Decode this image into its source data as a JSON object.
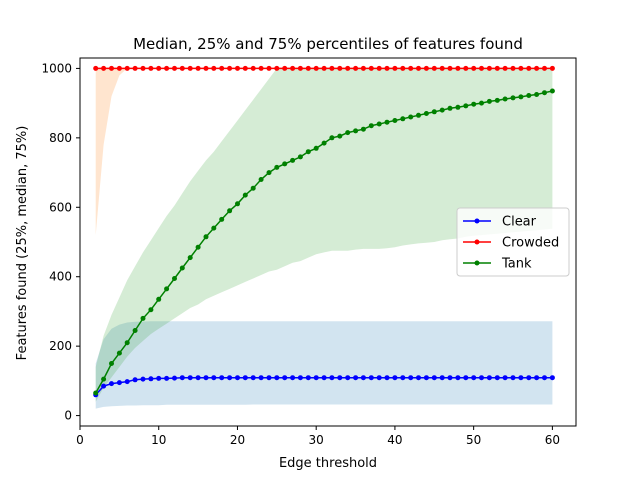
{
  "chart_data": {
    "type": "line",
    "title": "Median, 25% and 75% percentiles of features found",
    "xlabel": "Edge threshold",
    "ylabel": "Features found (25%, median, 75%)",
    "xlim": [
      0,
      63
    ],
    "ylim": [
      -30,
      1030
    ],
    "xticks": [
      0,
      10,
      20,
      30,
      40,
      50,
      60
    ],
    "yticks": [
      0,
      200,
      400,
      600,
      800,
      1000
    ],
    "legend_position": "center-right",
    "grid": false,
    "x": [
      2,
      3,
      4,
      5,
      6,
      7,
      8,
      9,
      10,
      11,
      12,
      13,
      14,
      15,
      16,
      17,
      18,
      19,
      20,
      21,
      22,
      23,
      24,
      25,
      26,
      27,
      28,
      29,
      30,
      31,
      32,
      33,
      34,
      35,
      36,
      37,
      38,
      39,
      40,
      41,
      42,
      43,
      44,
      45,
      46,
      47,
      48,
      49,
      50,
      51,
      52,
      53,
      54,
      55,
      56,
      57,
      58,
      59,
      60
    ],
    "series": [
      {
        "name": "Clear",
        "color": "#0000ff",
        "band_color": "#1f77b4",
        "median": [
          60,
          85,
          92,
          95,
          98,
          103,
          105,
          106,
          107,
          107,
          108,
          109,
          109,
          109,
          109,
          109,
          109,
          109,
          109,
          109,
          109,
          109,
          109,
          109,
          109,
          109,
          109,
          109,
          109,
          109,
          109,
          109,
          109,
          109,
          109,
          109,
          109,
          109,
          109,
          109,
          109,
          109,
          109,
          109,
          109,
          109,
          109,
          109,
          109,
          109,
          109,
          109,
          109,
          109,
          109,
          109,
          109,
          109,
          109
        ],
        "q25": [
          20,
          25,
          27,
          28,
          29,
          29,
          30,
          30,
          30,
          31,
          31,
          31,
          31,
          31,
          31,
          31,
          31,
          31,
          31,
          31,
          32,
          32,
          32,
          32,
          32,
          32,
          32,
          32,
          32,
          32,
          32,
          32,
          32,
          32,
          32,
          32,
          32,
          32,
          32,
          32,
          32,
          32,
          32,
          32,
          32,
          32,
          32,
          32,
          32,
          32,
          32,
          32,
          32,
          32,
          32,
          32,
          32,
          32,
          32
        ],
        "q75": [
          150,
          220,
          250,
          262,
          268,
          270,
          271,
          272,
          272,
          272,
          272,
          272,
          272,
          272,
          272,
          272,
          272,
          272,
          272,
          272,
          272,
          272,
          272,
          272,
          272,
          272,
          272,
          272,
          272,
          272,
          272,
          272,
          272,
          272,
          272,
          272,
          272,
          272,
          272,
          272,
          272,
          272,
          272,
          272,
          272,
          272,
          272,
          272,
          272,
          272,
          272,
          272,
          272,
          272,
          272,
          272,
          272,
          272,
          272
        ]
      },
      {
        "name": "Crowded",
        "color": "#ff0000",
        "band_color": "#ff7f0e",
        "median": [
          1000,
          1000,
          1000,
          1000,
          1000,
          1000,
          1000,
          1000,
          1000,
          1000,
          1000,
          1000,
          1000,
          1000,
          1000,
          1000,
          1000,
          1000,
          1000,
          1000,
          1000,
          1000,
          1000,
          1000,
          1000,
          1000,
          1000,
          1000,
          1000,
          1000,
          1000,
          1000,
          1000,
          1000,
          1000,
          1000,
          1000,
          1000,
          1000,
          1000,
          1000,
          1000,
          1000,
          1000,
          1000,
          1000,
          1000,
          1000,
          1000,
          1000,
          1000,
          1000,
          1000,
          1000,
          1000,
          1000,
          1000,
          1000,
          1000
        ],
        "q25": [
          520,
          780,
          920,
          980,
          1000,
          1000,
          1000,
          1000,
          1000,
          1000,
          1000,
          1000,
          1000,
          1000,
          1000,
          1000,
          1000,
          1000,
          1000,
          1000,
          1000,
          1000,
          1000,
          1000,
          1000,
          1000,
          1000,
          1000,
          1000,
          1000,
          1000,
          1000,
          1000,
          1000,
          1000,
          1000,
          1000,
          1000,
          1000,
          1000,
          1000,
          1000,
          1000,
          1000,
          1000,
          1000,
          1000,
          1000,
          1000,
          1000,
          1000,
          1000,
          1000,
          1000,
          1000,
          1000,
          1000,
          1000,
          1000
        ],
        "q75": [
          1000,
          1000,
          1000,
          1000,
          1000,
          1000,
          1000,
          1000,
          1000,
          1000,
          1000,
          1000,
          1000,
          1000,
          1000,
          1000,
          1000,
          1000,
          1000,
          1000,
          1000,
          1000,
          1000,
          1000,
          1000,
          1000,
          1000,
          1000,
          1000,
          1000,
          1000,
          1000,
          1000,
          1000,
          1000,
          1000,
          1000,
          1000,
          1000,
          1000,
          1000,
          1000,
          1000,
          1000,
          1000,
          1000,
          1000,
          1000,
          1000,
          1000,
          1000,
          1000,
          1000,
          1000,
          1000,
          1000,
          1000,
          1000,
          1000
        ]
      },
      {
        "name": "Tank",
        "color": "#008000",
        "band_color": "#2ca02c",
        "median": [
          65,
          105,
          150,
          180,
          210,
          245,
          280,
          305,
          335,
          365,
          395,
          425,
          455,
          485,
          515,
          540,
          565,
          590,
          610,
          635,
          655,
          680,
          700,
          715,
          725,
          735,
          745,
          760,
          770,
          785,
          800,
          805,
          815,
          820,
          825,
          835,
          840,
          845,
          850,
          855,
          860,
          865,
          870,
          875,
          880,
          885,
          888,
          892,
          897,
          900,
          905,
          908,
          912,
          915,
          918,
          922,
          925,
          930,
          935
        ],
        "q25": [
          40,
          80,
          110,
          140,
          170,
          195,
          215,
          235,
          250,
          265,
          280,
          295,
          310,
          320,
          335,
          345,
          355,
          365,
          375,
          385,
          395,
          405,
          415,
          420,
          430,
          440,
          445,
          455,
          465,
          470,
          475,
          475,
          475,
          478,
          480,
          480,
          480,
          482,
          485,
          490,
          493,
          496,
          498,
          500,
          505,
          508,
          510,
          515,
          518,
          520,
          522,
          524,
          526,
          528,
          530,
          532,
          534,
          536,
          538
        ],
        "q75": [
          140,
          230,
          290,
          340,
          390,
          430,
          470,
          505,
          540,
          575,
          605,
          640,
          675,
          705,
          735,
          760,
          790,
          820,
          850,
          880,
          910,
          940,
          970,
          1000,
          1000,
          1000,
          1000,
          1000,
          1000,
          1000,
          1000,
          1000,
          1000,
          1000,
          1000,
          1000,
          1000,
          1000,
          1000,
          1000,
          1000,
          1000,
          1000,
          1000,
          1000,
          1000,
          1000,
          1000,
          1000,
          1000,
          1000,
          1000,
          1000,
          1000,
          1000,
          1000,
          1000,
          1000,
          1000
        ]
      }
    ]
  }
}
